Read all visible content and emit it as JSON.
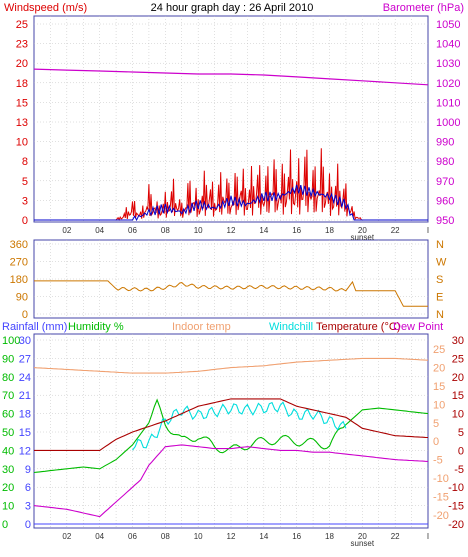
{
  "header": {
    "title": "24 hour graph day : 26 April 2010",
    "left_label": "Windspeed (m/s)",
    "right_label": "Barometer (hPa)"
  },
  "colors": {
    "windspeed": "#dd0000",
    "windavg": "#0000cc",
    "barometer": "#cc00cc",
    "direction": "#cc7700",
    "rainfall": "#4444ff",
    "humidity": "#00bb00",
    "indoor": "#f0a070",
    "windchill": "#00dddd",
    "temperature": "#aa0000",
    "dewpoint": "#cc00cc",
    "frame": "#4444aa",
    "grid": "#c0c0c0"
  },
  "x_ticks": [
    "02",
    "04",
    "06",
    "08",
    "10",
    "12",
    "14",
    "16",
    "18",
    "20",
    "22"
  ],
  "x_end_label": "I",
  "sunset_label": "sunset",
  "chart_data": [
    {
      "type": "line",
      "name": "wind-baro",
      "xlim": [
        0,
        24
      ],
      "left_axis": {
        "label": "Windspeed (m/s)",
        "ticks": [
          "25",
          "23",
          "20",
          "18",
          "15",
          "13",
          "10",
          "8",
          "5",
          "3",
          "0"
        ],
        "ylim": [
          0,
          25
        ]
      },
      "right_axis": {
        "label": "Barometer (hPa)",
        "ticks": [
          "1050",
          "1040",
          "1030",
          "1020",
          "1010",
          "1000",
          "990",
          "980",
          "970",
          "960",
          "950"
        ],
        "ylim": [
          950,
          1050
        ]
      },
      "series": [
        {
          "name": "Windspeed (m/s)",
          "axis": "left",
          "values": [
            [
              0,
              0
            ],
            [
              5,
              0
            ],
            [
              5.5,
              1
            ],
            [
              6,
              2.5
            ],
            [
              6.5,
              1
            ],
            [
              7,
              4
            ],
            [
              7.5,
              2
            ],
            [
              8,
              3
            ],
            [
              8.5,
              4.5
            ],
            [
              9,
              2
            ],
            [
              9.5,
              5
            ],
            [
              10,
              3
            ],
            [
              10.5,
              6
            ],
            [
              11,
              3.5
            ],
            [
              11.5,
              6
            ],
            [
              12,
              4
            ],
            [
              12.5,
              6.5
            ],
            [
              13,
              4.5
            ],
            [
              13.5,
              7
            ],
            [
              14,
              5
            ],
            [
              14.5,
              7.5
            ],
            [
              15,
              5.5
            ],
            [
              15.5,
              8
            ],
            [
              16,
              6
            ],
            [
              16.5,
              8.5
            ],
            [
              17,
              6
            ],
            [
              17.5,
              8
            ],
            [
              18,
              5
            ],
            [
              18.5,
              6
            ],
            [
              19,
              4
            ],
            [
              19.5,
              1
            ],
            [
              20,
              0
            ],
            [
              24,
              0
            ]
          ]
        },
        {
          "name": "Wind average",
          "axis": "left",
          "values": [
            [
              0,
              0
            ],
            [
              6,
              0
            ],
            [
              7,
              1
            ],
            [
              8,
              1.5
            ],
            [
              9,
              1
            ],
            [
              10,
              2
            ],
            [
              11,
              1.5
            ],
            [
              12,
              2.5
            ],
            [
              13,
              2
            ],
            [
              14,
              3
            ],
            [
              15,
              3
            ],
            [
              16,
              4
            ],
            [
              17,
              3.5
            ],
            [
              18,
              3
            ],
            [
              19,
              2
            ],
            [
              19.5,
              0
            ],
            [
              24,
              0
            ]
          ]
        },
        {
          "name": "Barometer (hPa)",
          "axis": "right",
          "values": [
            [
              0,
              1027
            ],
            [
              2,
              1026.5
            ],
            [
              4,
              1026
            ],
            [
              6,
              1025.5
            ],
            [
              8,
              1025
            ],
            [
              10,
              1024.5
            ],
            [
              12,
              1024.5
            ],
            [
              14,
              1024
            ],
            [
              16,
              1023
            ],
            [
              18,
              1022
            ],
            [
              20,
              1021
            ],
            [
              22,
              1020
            ],
            [
              24,
              1019
            ]
          ]
        }
      ]
    },
    {
      "type": "line",
      "name": "wind-direction",
      "xlim": [
        0,
        24
      ],
      "left_axis": {
        "ticks": [
          "360",
          "270",
          "180",
          "90",
          "0"
        ],
        "ylim": [
          0,
          360
        ]
      },
      "right_axis": {
        "ticks": [
          "N",
          "W",
          "S",
          "E",
          "N"
        ]
      },
      "series": [
        {
          "name": "Wind direction",
          "values": [
            [
              0,
              170
            ],
            [
              4.5,
              170
            ],
            [
              5,
              130
            ],
            [
              7,
              125
            ],
            [
              8,
              135
            ],
            [
              9,
              155
            ],
            [
              10,
              140
            ],
            [
              12,
              135
            ],
            [
              14,
              140
            ],
            [
              16,
              135
            ],
            [
              18,
              130
            ],
            [
              19,
              120
            ],
            [
              19.4,
              165
            ],
            [
              19.6,
              120
            ],
            [
              22,
              120
            ],
            [
              22.5,
              40
            ],
            [
              24,
              40
            ]
          ]
        }
      ]
    },
    {
      "type": "line",
      "name": "temp-humidity",
      "xlim": [
        0,
        24
      ],
      "header_labels": [
        "Rainfall (mm)",
        "Humidity %",
        "Indoor temp",
        "Windchill",
        "Temperature (°C)",
        "Dew Point"
      ],
      "left_axis_rain": {
        "ticks": [
          "30",
          "27",
          "24",
          "21",
          "18",
          "15",
          "12",
          "9",
          "6",
          "3",
          "0"
        ],
        "ylim": [
          0,
          30
        ]
      },
      "left_axis_humidity": {
        "ticks": [
          "100",
          "90",
          "80",
          "70",
          "60",
          "50",
          "40",
          "30",
          "20",
          "10",
          "0"
        ],
        "ylim": [
          0,
          100
        ]
      },
      "right_axis_inner": {
        "ticks": [
          "25",
          "20",
          "15",
          "10",
          "5",
          "0",
          "-5",
          "-10",
          "-15",
          "-20"
        ]
      },
      "right_axis_outer": {
        "ticks": [
          "30",
          "25",
          "20",
          "15",
          "10",
          "5",
          "0",
          "-5",
          "-10",
          "-15",
          "-20"
        ],
        "ylim": [
          -20,
          30
        ]
      },
      "series": [
        {
          "name": "Rainfall (mm)",
          "axis": "rain",
          "values": [
            [
              0,
              0
            ],
            [
              24,
              0
            ]
          ]
        },
        {
          "name": "Humidity %",
          "axis": "humidity",
          "values": [
            [
              0,
              28
            ],
            [
              1,
              29
            ],
            [
              2,
              30
            ],
            [
              3,
              31
            ],
            [
              4,
              30
            ],
            [
              5,
              35
            ],
            [
              6,
              43
            ],
            [
              7,
              55
            ],
            [
              7.5,
              65
            ],
            [
              8,
              55
            ],
            [
              9,
              45
            ],
            [
              10,
              48
            ],
            [
              11,
              42
            ],
            [
              12,
              40
            ],
            [
              13,
              43
            ],
            [
              14,
              45
            ],
            [
              15,
              46
            ],
            [
              16,
              45
            ],
            [
              17,
              44
            ],
            [
              18,
              43
            ],
            [
              19,
              54
            ],
            [
              20,
              62
            ],
            [
              21,
              63
            ],
            [
              22,
              62
            ],
            [
              23,
              61
            ],
            [
              24,
              60
            ]
          ]
        },
        {
          "name": "Indoor temp",
          "axis": "temp",
          "values": [
            [
              0,
              22.5
            ],
            [
              2,
              22
            ],
            [
              4,
              21.5
            ],
            [
              6,
              21
            ],
            [
              8,
              21
            ],
            [
              10,
              21.5
            ],
            [
              12,
              22.5
            ],
            [
              14,
              23
            ],
            [
              16,
              24
            ],
            [
              18,
              24.5
            ],
            [
              20,
              25
            ],
            [
              22,
              25
            ],
            [
              24,
              24.5
            ]
          ]
        },
        {
          "name": "Windchill",
          "axis": "temp",
          "values": [
            [
              6,
              1.5
            ],
            [
              7,
              2
            ],
            [
              8,
              8
            ],
            [
              9,
              11
            ],
            [
              10,
              9.5
            ],
            [
              11,
              10.5
            ],
            [
              12,
              11.5
            ],
            [
              13,
              11
            ],
            [
              14,
              11.5
            ],
            [
              15,
              12
            ],
            [
              16,
              9.5
            ],
            [
              17,
              10
            ],
            [
              18,
              8
            ],
            [
              19,
              6
            ]
          ]
        },
        {
          "name": "Temperature (°C)",
          "axis": "temp",
          "values": [
            [
              0,
              0
            ],
            [
              2,
              0
            ],
            [
              4,
              0
            ],
            [
              5,
              3
            ],
            [
              6,
              5
            ],
            [
              7,
              6.5
            ],
            [
              8,
              8
            ],
            [
              9,
              10
            ],
            [
              10,
              12
            ],
            [
              11,
              13
            ],
            [
              12,
              14
            ],
            [
              13,
              14
            ],
            [
              14,
              14
            ],
            [
              15,
              14
            ],
            [
              16,
              12
            ],
            [
              17,
              11
            ],
            [
              18,
              10
            ],
            [
              19,
              9
            ],
            [
              20,
              6
            ],
            [
              21,
              5
            ],
            [
              22,
              4
            ],
            [
              24,
              3.5
            ]
          ]
        },
        {
          "name": "Dew Point",
          "axis": "temp",
          "values": [
            [
              0,
              -15
            ],
            [
              1,
              -15.5
            ],
            [
              2,
              -16
            ],
            [
              3,
              -17
            ],
            [
              4,
              -18
            ],
            [
              5,
              -14
            ],
            [
              6,
              -10
            ],
            [
              6.5,
              -8
            ],
            [
              7,
              -4
            ],
            [
              8,
              1
            ],
            [
              9,
              1.5
            ],
            [
              10,
              1
            ],
            [
              11,
              0.5
            ],
            [
              12,
              0.5
            ],
            [
              13,
              1
            ],
            [
              14,
              0.5
            ],
            [
              15,
              0
            ],
            [
              16,
              0
            ],
            [
              17,
              -0.5
            ],
            [
              18,
              -0.5
            ],
            [
              19,
              -1
            ],
            [
              20,
              -1.5
            ],
            [
              21,
              -2
            ],
            [
              22,
              -2.5
            ],
            [
              24,
              -3
            ]
          ]
        }
      ]
    }
  ]
}
